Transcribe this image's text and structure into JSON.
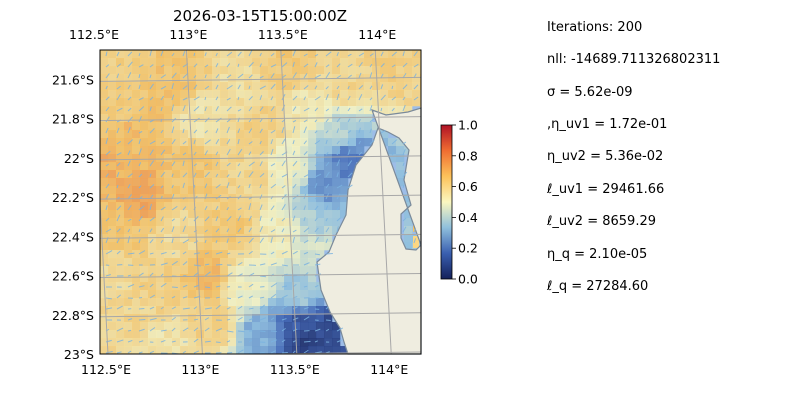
{
  "chart_data": {
    "type": "heatmap",
    "title": "2026-03-15T15:00:00Z",
    "xlim": [
      112.5,
      114.2
    ],
    "ylim": [
      -23.0,
      -21.45
    ],
    "x_ticks": [
      {
        "value": 112.5,
        "label": "112.5°E"
      },
      {
        "value": 113.0,
        "label": "113°E"
      },
      {
        "value": 113.5,
        "label": "113.5°E"
      },
      {
        "value": 114.0,
        "label": "114°E"
      }
    ],
    "y_ticks": [
      {
        "value": -21.6,
        "label": "21.6°S"
      },
      {
        "value": -21.8,
        "label": "21.8°S"
      },
      {
        "value": -22.0,
        "label": "22°S"
      },
      {
        "value": -22.2,
        "label": "22.2°S"
      },
      {
        "value": -22.4,
        "label": "22.4°S"
      },
      {
        "value": -22.6,
        "label": "22.6°S"
      },
      {
        "value": -22.8,
        "label": "22.8°S"
      },
      {
        "value": -23.0,
        "label": "23°S"
      }
    ],
    "grid": true,
    "colorbar": {
      "range": [
        0.0,
        1.0
      ],
      "ticks": [
        "0.0",
        "0.2",
        "0.4",
        "0.6",
        "0.8",
        "1.0"
      ],
      "colors": [
        "#14205a",
        "#3a5fb0",
        "#8fbfdc",
        "#fbf7c0",
        "#fcc25a",
        "#f06d31",
        "#b01226"
      ]
    },
    "colors": {
      "ocean": "#9dbde8",
      "land": "#efede0",
      "coast": "#7a8a9a",
      "grid": "#a8a8a8",
      "vectors": "#7ab3e0"
    },
    "field_samples": [
      {
        "lon": 112.6,
        "lat": -21.55,
        "value": 0.62
      },
      {
        "lon": 112.9,
        "lat": -21.6,
        "value": 0.66
      },
      {
        "lon": 113.25,
        "lat": -21.65,
        "value": 0.57
      },
      {
        "lon": 113.5,
        "lat": -21.55,
        "value": 0.64
      },
      {
        "lon": 113.8,
        "lat": -21.6,
        "value": 0.6
      },
      {
        "lon": 114.05,
        "lat": -21.55,
        "value": 0.62
      },
      {
        "lon": 112.55,
        "lat": -21.75,
        "value": 0.64
      },
      {
        "lon": 112.7,
        "lat": -21.9,
        "value": 0.68
      },
      {
        "lon": 113.05,
        "lat": -21.8,
        "value": 0.55
      },
      {
        "lon": 113.35,
        "lat": -21.85,
        "value": 0.62
      },
      {
        "lon": 113.6,
        "lat": -21.75,
        "value": 0.54
      },
      {
        "lon": 113.75,
        "lat": -21.9,
        "value": 0.4
      },
      {
        "lon": 113.8,
        "lat": -22.0,
        "value": 0.2
      },
      {
        "lon": 112.55,
        "lat": -22.05,
        "value": 0.7
      },
      {
        "lon": 112.7,
        "lat": -22.2,
        "value": 0.72
      },
      {
        "lon": 113.0,
        "lat": -22.05,
        "value": 0.65
      },
      {
        "lon": 113.3,
        "lat": -22.1,
        "value": 0.6
      },
      {
        "lon": 113.5,
        "lat": -22.05,
        "value": 0.5
      },
      {
        "lon": 113.65,
        "lat": -22.3,
        "value": 0.38
      },
      {
        "lon": 113.7,
        "lat": -22.15,
        "value": 0.25
      },
      {
        "lon": 112.6,
        "lat": -22.35,
        "value": 0.66
      },
      {
        "lon": 112.9,
        "lat": -22.4,
        "value": 0.58
      },
      {
        "lon": 113.2,
        "lat": -22.35,
        "value": 0.64
      },
      {
        "lon": 113.45,
        "lat": -22.4,
        "value": 0.52
      },
      {
        "lon": 113.65,
        "lat": -22.5,
        "value": 0.45
      },
      {
        "lon": 112.55,
        "lat": -22.6,
        "value": 0.58
      },
      {
        "lon": 112.85,
        "lat": -22.65,
        "value": 0.62
      },
      {
        "lon": 113.05,
        "lat": -22.6,
        "value": 0.68
      },
      {
        "lon": 113.3,
        "lat": -22.65,
        "value": 0.5
      },
      {
        "lon": 113.55,
        "lat": -22.7,
        "value": 0.36
      },
      {
        "lon": 112.6,
        "lat": -22.85,
        "value": 0.6
      },
      {
        "lon": 112.85,
        "lat": -22.95,
        "value": 0.55
      },
      {
        "lon": 113.1,
        "lat": -22.85,
        "value": 0.62
      },
      {
        "lon": 113.35,
        "lat": -22.9,
        "value": 0.3
      },
      {
        "lon": 113.55,
        "lat": -22.85,
        "value": 0.12
      },
      {
        "lon": 113.6,
        "lat": -22.95,
        "value": 0.05
      },
      {
        "lon": 113.7,
        "lat": -22.9,
        "value": 0.08
      }
    ]
  },
  "params": [
    "Iterations: 200",
    "nll: -14689.711326802311",
    "σ = 5.62e-09",
    ",η_uv1 = 1.72e-01",
    "η_uv2 = 5.36e-02",
    "ℓ_uv1 = 29461.66",
    "ℓ_uv2 = 8659.29",
    "η_q = 2.10e-05",
    "ℓ_q = 27284.60"
  ]
}
